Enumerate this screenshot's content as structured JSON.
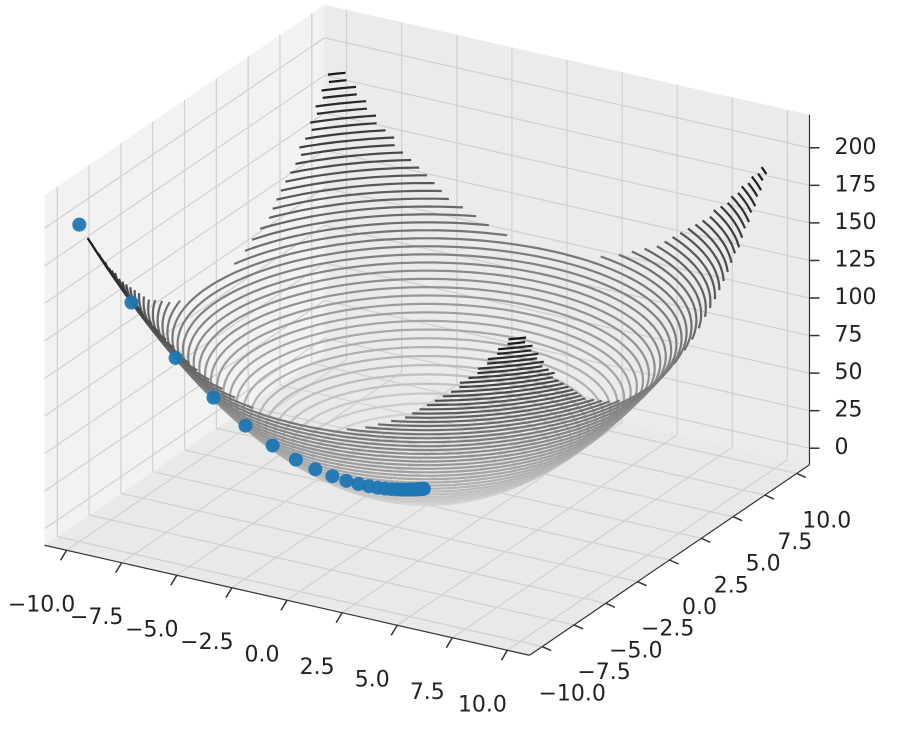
{
  "chart_data": {
    "type": "contour3d",
    "xlim": [
      -11,
      11
    ],
    "ylim": [
      -11,
      11
    ],
    "zlim": [
      -11,
      222
    ],
    "xticks": [
      {
        "value": -10,
        "label": "−10.0"
      },
      {
        "value": -7.5,
        "label": "−7.5"
      },
      {
        "value": -5,
        "label": "−5.0"
      },
      {
        "value": -2.5,
        "label": "−2.5"
      },
      {
        "value": 0,
        "label": "0.0"
      },
      2.5,
      {
        "value": 5,
        "label": "5.0"
      },
      7.5,
      {
        "value": 10,
        "label": "10.0"
      }
    ],
    "yticks": [
      {
        "value": -10,
        "label": "−10.0"
      },
      {
        "value": -7.5,
        "label": "−7.5"
      },
      {
        "value": -5,
        "label": "−5.0"
      },
      {
        "value": -2.5,
        "label": "−2.5"
      },
      {
        "value": 0,
        "label": "0.0"
      },
      2.5,
      {
        "value": 5,
        "label": "5.0"
      },
      7.5,
      {
        "value": 10,
        "label": "10.0"
      }
    ],
    "zticks": [
      0,
      25,
      50,
      75,
      100,
      125,
      150,
      175,
      200
    ],
    "surface_range": [
      -10,
      10
    ],
    "levels": [
      4,
      8,
      12,
      16,
      20,
      24,
      28,
      32,
      36,
      40,
      44,
      48,
      52,
      56,
      60,
      64,
      68,
      72,
      76,
      80,
      84,
      88,
      92,
      96,
      100,
      104,
      108,
      112,
      116,
      120,
      124,
      128,
      132,
      136,
      140,
      144,
      148,
      152,
      156,
      160,
      164,
      168,
      172,
      176,
      180,
      184,
      188,
      192,
      196
    ],
    "grid": true,
    "scatter": {
      "color": "#1f77b4",
      "x": [
        -10,
        -8.5,
        -7.23,
        -6.14,
        -5.22,
        -4.44,
        -3.77,
        -3.21,
        -2.72,
        -2.32,
        -1.97,
        -1.67,
        -1.42,
        -1.21,
        -1.03,
        -0.87,
        -0.74,
        -0.63,
        -0.54,
        -0.46,
        -0.39,
        -0.33,
        -0.28,
        -0.24,
        -0.2,
        -0.17,
        -0.15,
        -0.12,
        -0.1,
        -0.09
      ],
      "y": [
        -10,
        -8.5,
        -7.23,
        -6.14,
        -5.22,
        -4.44,
        -3.77,
        -3.21,
        -2.72,
        -2.32,
        -1.97,
        -1.67,
        -1.42,
        -1.21,
        -1.03,
        -0.87,
        -0.74,
        -0.63,
        -0.54,
        -0.46,
        -0.39,
        -0.33,
        -0.28,
        -0.24,
        -0.2,
        -0.17,
        -0.15,
        -0.12,
        -0.1,
        -0.09
      ],
      "z": [
        200,
        144.5,
        104.5,
        75.4,
        54.5,
        39.4,
        28.4,
        20.6,
        14.8,
        10.8,
        7.8,
        5.6,
        4.0,
        2.9,
        2.1,
        1.5,
        1.1,
        0.8,
        0.6,
        0.4,
        0.3,
        0.2,
        0.16,
        0.12,
        0.08,
        0.06,
        0.05,
        0.03,
        0.02,
        0.02
      ]
    }
  }
}
